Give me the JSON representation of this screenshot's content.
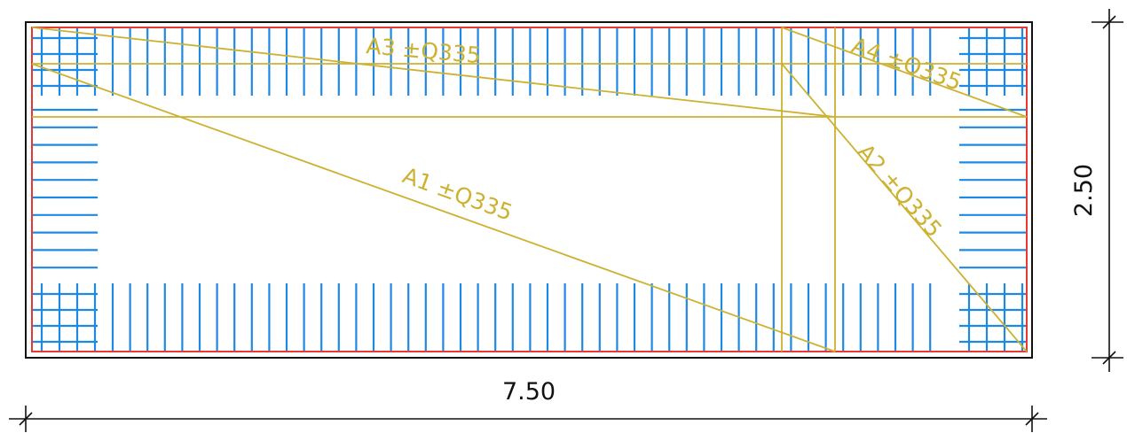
{
  "colors": {
    "outline": "#111111",
    "slab_edge": "#e53935",
    "rebar": "#1e88e5",
    "area_lines": "#cdb131",
    "dimension": "#111111"
  },
  "dimensions": {
    "width_label": "7.50",
    "height_label": "2.50"
  },
  "reinforcement_areas": [
    {
      "id": "A1",
      "label": "A1 ±Q335"
    },
    {
      "id": "A2",
      "label": "A2 ±Q335"
    },
    {
      "id": "A3",
      "label": "A3 ±Q335"
    },
    {
      "id": "A4",
      "label": "A4 ±Q335"
    }
  ]
}
